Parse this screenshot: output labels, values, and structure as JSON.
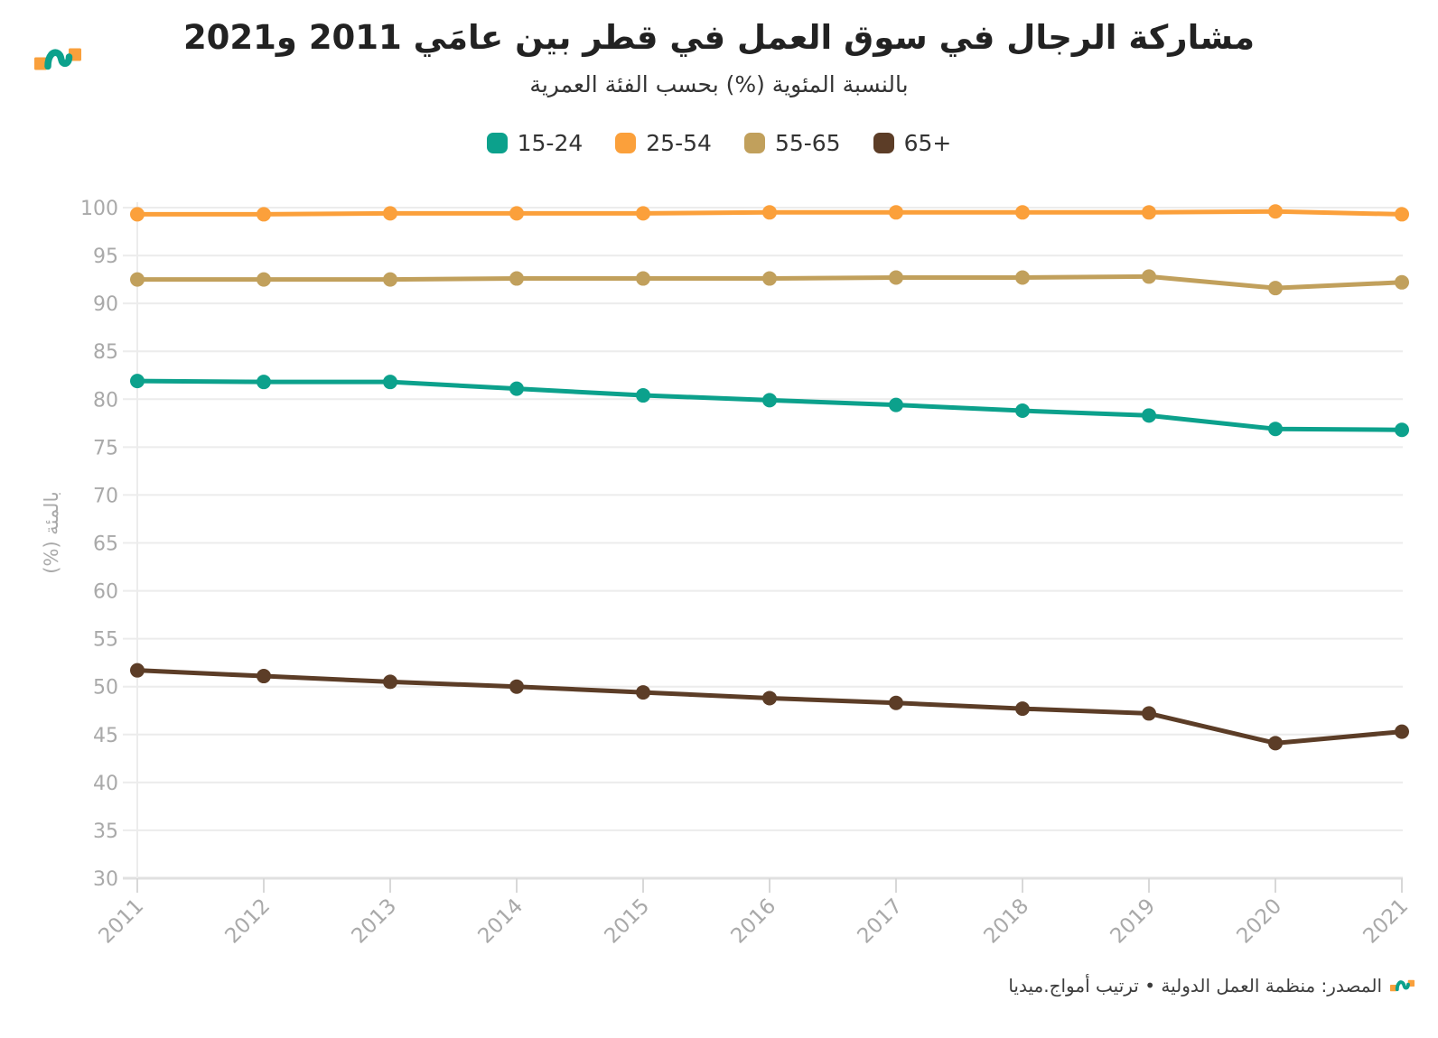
{
  "header": {
    "title": "مشاركة الرجال في سوق العمل في قطر بين عامَي 2011 و2021",
    "subtitle": "بالنسبة المئوية (%) بحسب الفئة العمرية"
  },
  "chart_data": {
    "type": "line",
    "x": [
      "2011",
      "2012",
      "2013",
      "2014",
      "2015",
      "2016",
      "2017",
      "2018",
      "2019",
      "2020",
      "2021"
    ],
    "series": [
      {
        "name": "15-24",
        "color": "#0ca18c",
        "values": [
          81.9,
          81.8,
          81.8,
          81.1,
          80.4,
          79.9,
          79.4,
          78.8,
          78.3,
          76.9,
          76.8
        ]
      },
      {
        "name": "25-54",
        "color": "#fba03b",
        "values": [
          99.3,
          99.3,
          99.4,
          99.4,
          99.4,
          99.5,
          99.5,
          99.5,
          99.5,
          99.6,
          99.3
        ]
      },
      {
        "name": "55-65",
        "color": "#c1a05c",
        "values": [
          92.5,
          92.5,
          92.5,
          92.6,
          92.6,
          92.6,
          92.7,
          92.7,
          92.8,
          91.6,
          92.2
        ]
      },
      {
        "name": "65+",
        "color": "#5c3d27",
        "values": [
          51.7,
          51.1,
          50.5,
          50.0,
          49.4,
          48.8,
          48.3,
          47.7,
          47.2,
          44.1,
          45.3
        ]
      }
    ],
    "ylabel": "بالمئة (%)",
    "ylim": [
      30,
      100
    ],
    "ytick_step": 5,
    "grid": true,
    "legend_position": "top-center"
  },
  "footer": {
    "source": "المصدر: منظمة العمل الدولية • ترتيب أمواج.ميديا"
  },
  "logo": {
    "orange": "#f9a03c",
    "teal": "#0ca18c"
  },
  "styles": {
    "axis_text": "#a9a9a9",
    "grid_color": "#ececec",
    "tick_color": "#d8d8d8",
    "axis_line": "#e0e0e0"
  }
}
